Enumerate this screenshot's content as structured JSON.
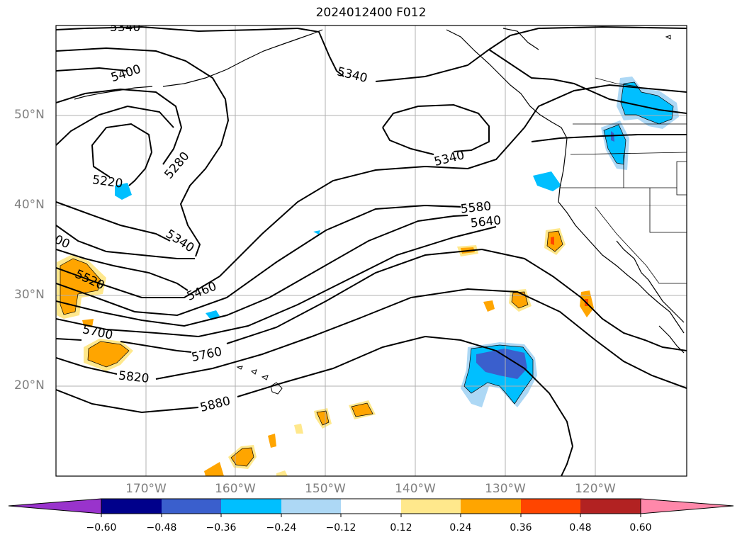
{
  "title": "2024012400 F012",
  "map": {
    "lat_labels": [
      "50°N",
      "40°N",
      "30°N",
      "20°N"
    ],
    "lon_labels": [
      "170°W",
      "160°W",
      "150°W",
      "140°W",
      "130°W",
      "120°W"
    ],
    "gridlines": true,
    "contour_labels": [
      "5340",
      "5400",
      "5340",
      "5340",
      "5280",
      "5220",
      "5580",
      "5640",
      "5340",
      "5460",
      "5520",
      "5700",
      "5760",
      "5820",
      "5880",
      "00"
    ]
  },
  "colorbar": {
    "ticks": [
      "−0.60",
      "−0.48",
      "−0.36",
      "−0.24",
      "−0.12",
      "0.12",
      "0.24",
      "0.36",
      "0.48",
      "0.60"
    ],
    "colors": [
      "#9933cc",
      "#00008b",
      "#3a5fcd",
      "#00bfff",
      "#add8f5",
      "#ffffff",
      "#ffe88c",
      "#ffa500",
      "#ff4500",
      "#b22222",
      "#ff88aa"
    ],
    "extend": "both"
  }
}
